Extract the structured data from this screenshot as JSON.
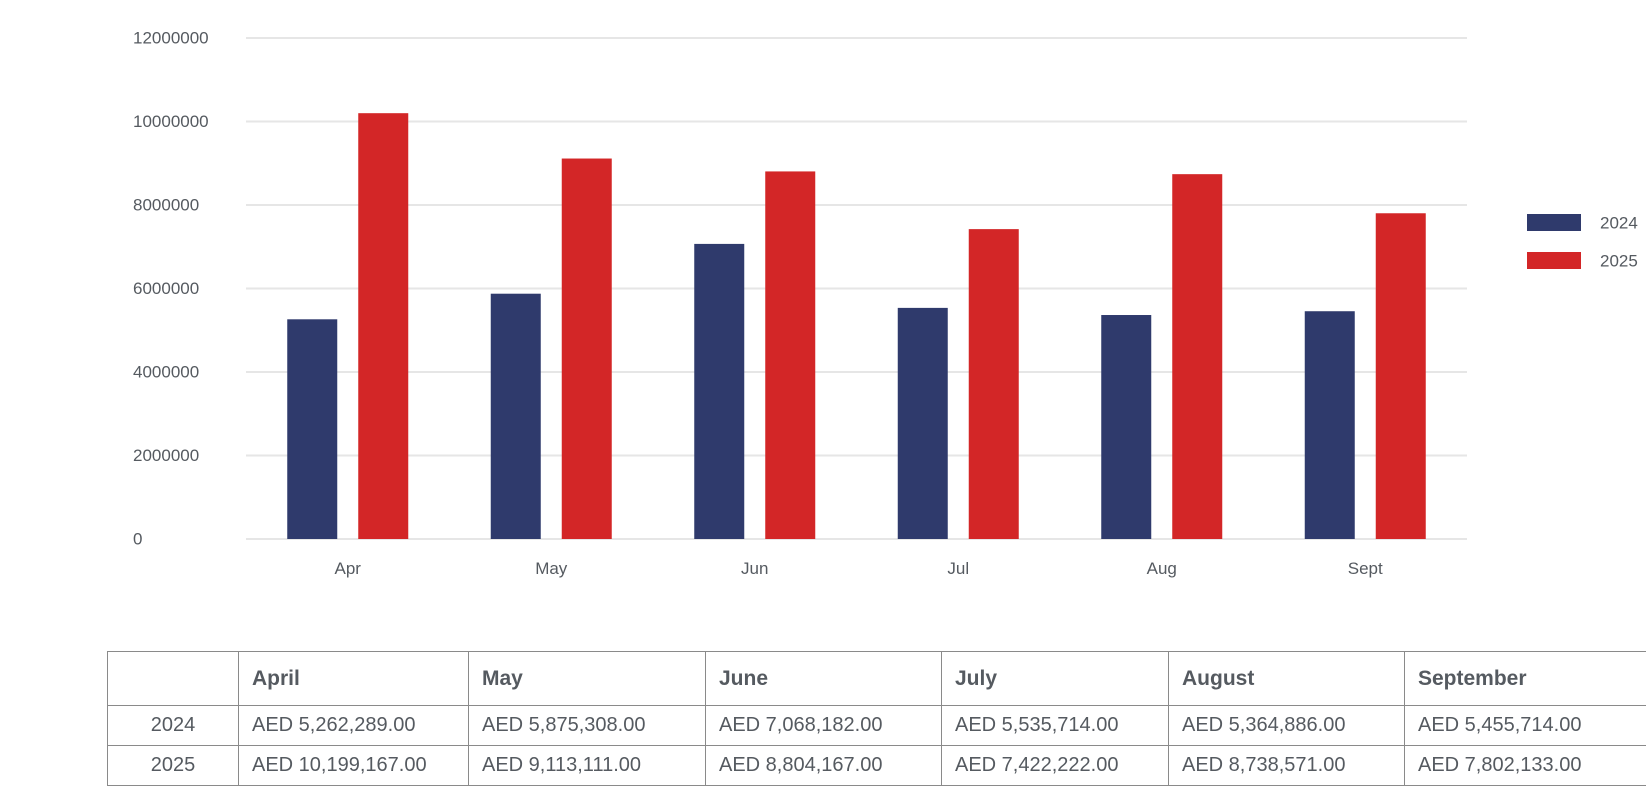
{
  "chart_data": {
    "type": "bar",
    "categories": [
      "Apr",
      "May",
      "Jun",
      "Jul",
      "Aug",
      "Sept"
    ],
    "series": [
      {
        "name": "2024",
        "color": "#2f3a6c",
        "values": [
          5262289,
          5875308,
          7068182,
          5535714,
          5364886,
          5455714
        ]
      },
      {
        "name": "2025",
        "color": "#d32627",
        "values": [
          10199167,
          9113111,
          8804167,
          7422222,
          8738571,
          7802133
        ]
      }
    ],
    "yticks": [
      "0",
      "2000000",
      "4000000",
      "6000000",
      "8000000",
      "10000000",
      "12000000"
    ],
    "ylim": [
      0,
      12000000
    ],
    "title": "",
    "xlabel": "",
    "ylabel": "",
    "grid": true,
    "legend_position": "right"
  },
  "table": {
    "headers": [
      "",
      "April",
      "May",
      "June",
      "July",
      "August",
      "September"
    ],
    "rows": [
      {
        "label": "2024",
        "cells": [
          "AED 5,262,289.00",
          "AED 5,875,308.00",
          "AED 7,068,182.00",
          "AED 5,535,714.00",
          "AED 5,364,886.00",
          "AED 5,455,714.00"
        ]
      },
      {
        "label": "2025",
        "cells": [
          "AED 10,199,167.00",
          "AED 9,113,111.00",
          "AED 8,804,167.00",
          "AED 7,422,222.00",
          "AED 8,738,571.00",
          "AED 7,802,133.00"
        ]
      }
    ]
  }
}
